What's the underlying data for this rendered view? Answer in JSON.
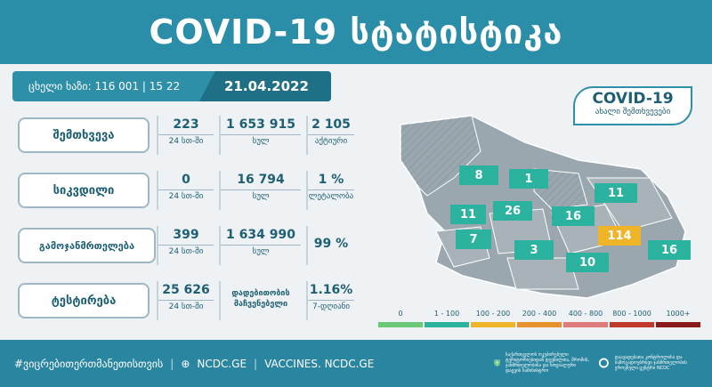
{
  "header": {
    "title": "COVID-19  სტატისტიკა"
  },
  "ribbon": {
    "hotline": "ცხელი ხაზი: 116 001 | 15 22",
    "date": "21.04.2022"
  },
  "stats": [
    {
      "label": "შემთხვევა",
      "c1": {
        "num": "223",
        "sub": "24 სთ-ში"
      },
      "c2": {
        "num": "1 653 915",
        "sub": "სულ"
      },
      "c3": {
        "num": "2 105",
        "sub": "აქტიური"
      }
    },
    {
      "label": "სიკვდილი",
      "c1": {
        "num": "0",
        "sub": "24 სთ-ში"
      },
      "c2": {
        "num": "16 794",
        "sub": "სულ"
      },
      "c3": {
        "num": "1 %",
        "sub": "ლეტალობა"
      }
    },
    {
      "label": "გამოჯანმრთელება",
      "c1": {
        "num": "399",
        "sub": "24 სთ-ში"
      },
      "c2": {
        "num": "1 634 990",
        "sub": "სულ"
      },
      "c3": {
        "num": "99 %",
        "sub": ""
      }
    },
    {
      "label": "ტესტირება",
      "c1": {
        "num": "25 626",
        "sub": "24 სთ-ში"
      },
      "c2": {
        "num": "დადებითობის მაჩვენებელი",
        "sub": ""
      },
      "c3": {
        "num": "1.16%",
        "sub": "7-დღიანი"
      }
    }
  ],
  "map": {
    "title": "COVID-19",
    "subtitle": "ახალი შემთხვევები",
    "regions": [
      "8",
      "1",
      "11",
      "11",
      "26",
      "16",
      "7",
      "114",
      "3",
      "10",
      "16"
    ]
  },
  "legend": [
    {
      "label": "0",
      "color": "#6cc977"
    },
    {
      "label": "1 - 100",
      "color": "#2bb3a0"
    },
    {
      "label": "100 - 200",
      "color": "#f0b429"
    },
    {
      "label": "200 - 400",
      "color": "#e8912f"
    },
    {
      "label": "400 - 800",
      "color": "#e07b7b"
    },
    {
      "label": "800 - 1000",
      "color": "#c0392b"
    },
    {
      "label": "1000+",
      "color": "#8b1a1a"
    }
  ],
  "footer": {
    "hashtag": "#ვიცრებითერთმანეთისთვის",
    "site": "NCDC.GE",
    "vaccines": "VACCINES. NCDC.GE",
    "logo1_text": "საქართველოს ოკუპირებული ტერიტორიებიდან დევნილთა, შრომის, ჯანმრთელობისა და სოციალური დაცვის სამინისტრო",
    "logo2_text": "დაავადებათა კონტროლისა და საზოგადოებრივი ჯანმრთელობის ეროვნული ცენტრი NCDC"
  }
}
